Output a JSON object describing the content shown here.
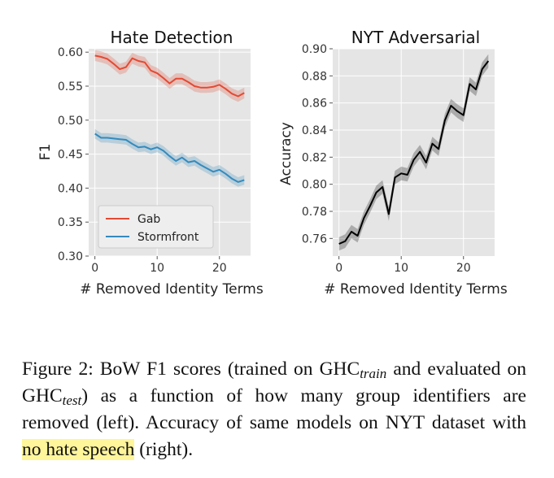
{
  "chart_data": [
    {
      "type": "line",
      "title": "Hate Detection",
      "xlabel": "# Removed Identity Terms",
      "ylabel": "F1",
      "xlim": [
        -1,
        25
      ],
      "ylim": [
        0.3,
        0.605
      ],
      "xticks": [
        0,
        10,
        20
      ],
      "yticks": [
        0.3,
        0.35,
        0.4,
        0.45,
        0.5,
        0.55,
        0.6
      ],
      "ytick_labels": [
        "0.30",
        "0.35",
        "0.40",
        "0.45",
        "0.50",
        "0.55",
        "0.60"
      ],
      "grid": true,
      "legend": "lower left",
      "x": [
        0,
        1,
        2,
        3,
        4,
        5,
        6,
        7,
        8,
        9,
        10,
        11,
        12,
        13,
        14,
        15,
        16,
        17,
        18,
        19,
        20,
        21,
        22,
        23,
        24
      ],
      "series": [
        {
          "name": "Gab",
          "color": "#e24a33",
          "values": [
            0.595,
            0.593,
            0.59,
            0.583,
            0.575,
            0.578,
            0.591,
            0.587,
            0.585,
            0.573,
            0.569,
            0.562,
            0.554,
            0.561,
            0.561,
            0.556,
            0.55,
            0.548,
            0.548,
            0.549,
            0.552,
            0.546,
            0.539,
            0.535,
            0.54
          ],
          "band": 0.008
        },
        {
          "name": "Stormfront",
          "color": "#348abd",
          "values": [
            0.48,
            0.474,
            0.474,
            0.473,
            0.472,
            0.471,
            0.465,
            0.46,
            0.461,
            0.457,
            0.46,
            0.455,
            0.447,
            0.44,
            0.445,
            0.438,
            0.44,
            0.434,
            0.429,
            0.424,
            0.427,
            0.421,
            0.414,
            0.409,
            0.412
          ],
          "band": 0.007
        }
      ]
    },
    {
      "type": "line",
      "title": "NYT Adversarial",
      "xlabel": "# Removed Identity Terms",
      "ylabel": "Accuracy",
      "xlim": [
        -1,
        25
      ],
      "ylim": [
        0.747,
        0.9
      ],
      "xticks": [
        0,
        10,
        20
      ],
      "yticks": [
        0.76,
        0.78,
        0.8,
        0.82,
        0.84,
        0.86,
        0.88,
        0.9
      ],
      "ytick_labels": [
        "0.76",
        "0.78",
        "0.80",
        "0.82",
        "0.84",
        "0.86",
        "0.88",
        "0.90"
      ],
      "grid": true,
      "legend": "none",
      "x": [
        0,
        1,
        2,
        3,
        4,
        5,
        6,
        7,
        8,
        9,
        10,
        11,
        12,
        13,
        14,
        15,
        16,
        17,
        18,
        19,
        20,
        21,
        22,
        23,
        24
      ],
      "series": [
        {
          "color": "#000000",
          "values": [
            0.756,
            0.758,
            0.765,
            0.762,
            0.775,
            0.784,
            0.794,
            0.798,
            0.778,
            0.805,
            0.808,
            0.807,
            0.818,
            0.824,
            0.816,
            0.83,
            0.826,
            0.847,
            0.858,
            0.854,
            0.851,
            0.874,
            0.87,
            0.885,
            0.891
          ],
          "band": 0.005
        }
      ]
    }
  ],
  "caption": {
    "p1": "Figure 2: BoW F1 scores (trained on GHC",
    "sub1": "train",
    "p2": " and evaluated on GHC",
    "sub2": "test",
    "p3": ") as a function of how many group identifiers are removed (left). Accuracy of same models on NYT dataset with ",
    "highlight": "no hate speech",
    "p4": " (right)."
  },
  "colors": {
    "axes_bg": "#e5e5e5",
    "grid": "#ffffff",
    "highlight": "#fff59a"
  }
}
